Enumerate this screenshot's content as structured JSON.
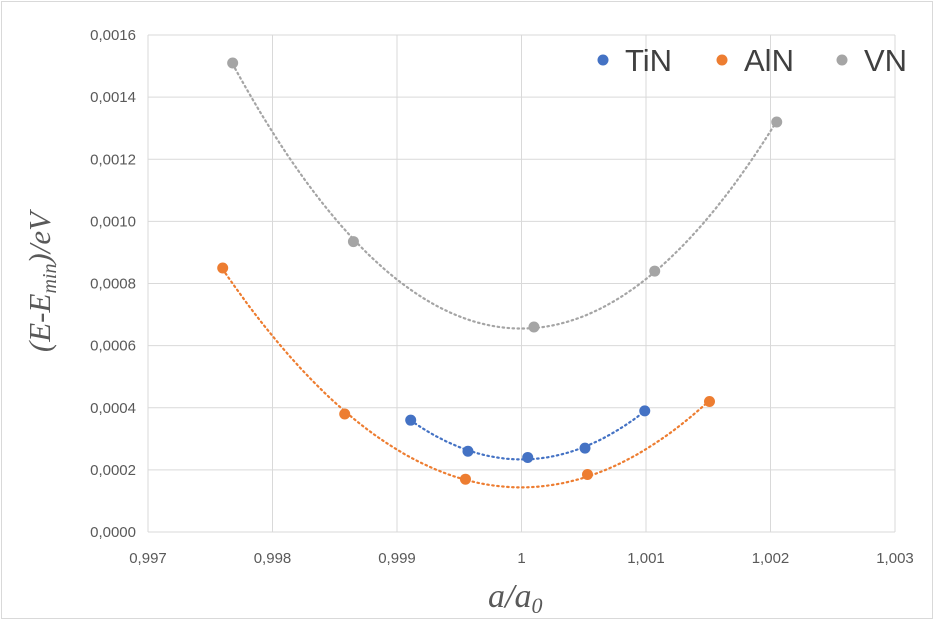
{
  "chart_data": {
    "type": "scatter",
    "xlabel": "a/a0",
    "ylabel": "(E-Emin)/eV",
    "xlim": [
      0.997,
      1.003
    ],
    "ylim": [
      0,
      0.0016
    ],
    "x_ticks": [
      "0,997",
      "0,998",
      "0,999",
      "1",
      "1,001",
      "1,002",
      "1,003"
    ],
    "y_ticks": [
      "0,0000",
      "0,0002",
      "0,0004",
      "0,0006",
      "0,0008",
      "0,0010",
      "0,0012",
      "0,0014",
      "0,0016"
    ],
    "grid": "vertical and horizontal",
    "legend_position": "top-right",
    "trendline": "quadratic, dotted",
    "series": [
      {
        "name": "TiN",
        "color": "#4472c4",
        "x": [
          0.99911,
          0.99957,
          1.00005,
          1.00051,
          1.00099
        ],
        "y": [
          0.00036,
          0.00026,
          0.00024,
          0.00027,
          0.00039
        ]
      },
      {
        "name": "AlN",
        "color": "#ed7d31",
        "x": [
          0.9976,
          0.99858,
          0.99955,
          1.00053,
          1.00151
        ],
        "y": [
          0.00085,
          0.00038,
          0.00017,
          0.000185,
          0.00042
        ]
      },
      {
        "name": "VN",
        "color": "#a5a5a5",
        "x": [
          0.99768,
          0.99865,
          1.0001,
          1.00107,
          1.00205
        ],
        "y": [
          0.00151,
          0.000935,
          0.00066,
          0.00084,
          0.00132
        ]
      }
    ]
  }
}
